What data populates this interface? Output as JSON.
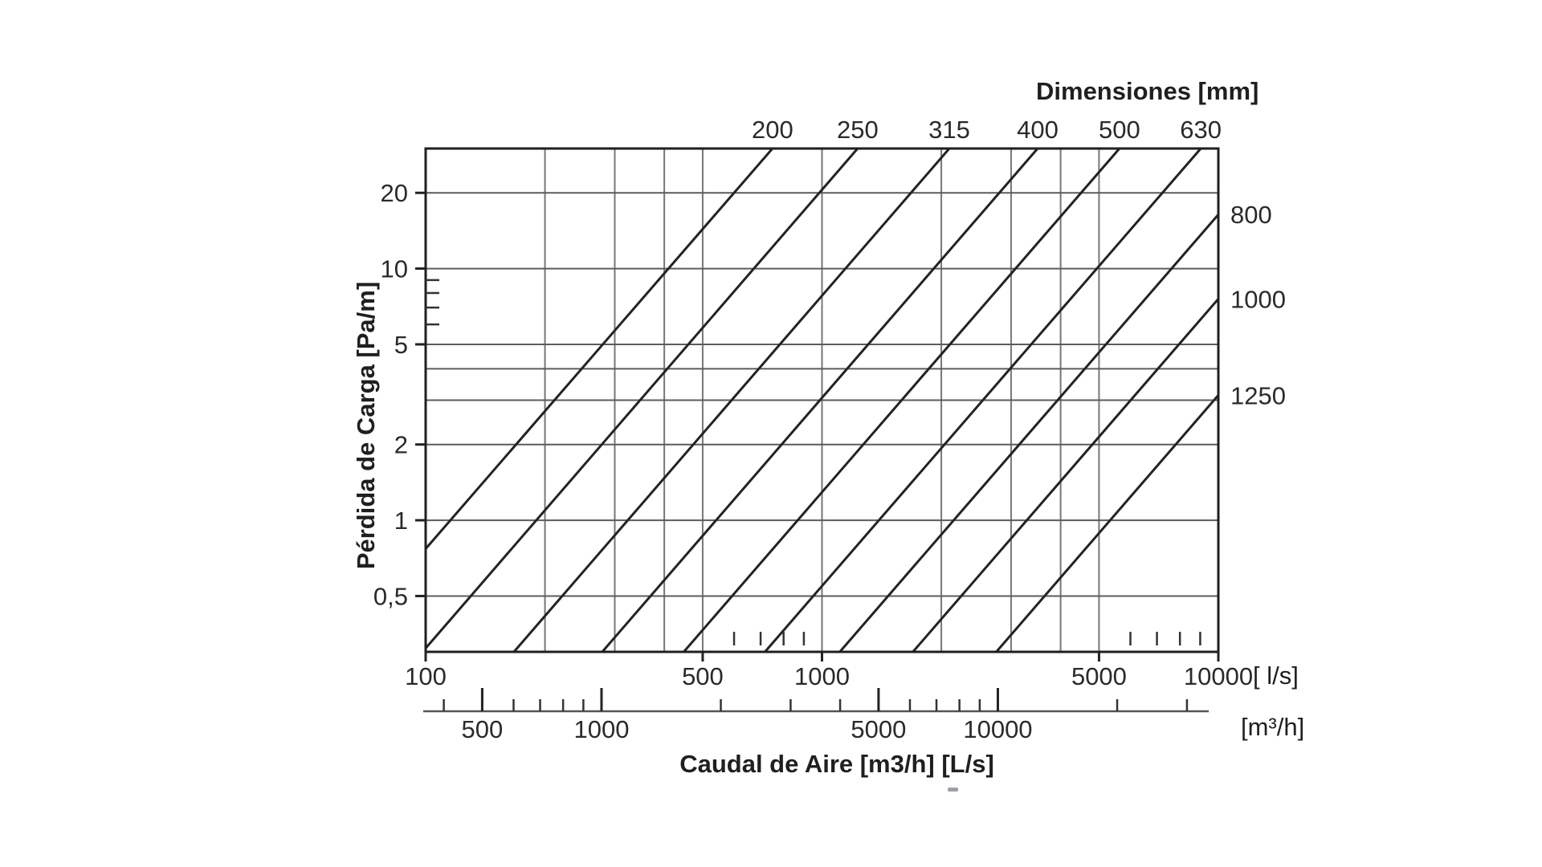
{
  "chart_data": {
    "type": "line",
    "title_top": "Dimensiones [mm]",
    "ylabel": "Pérdida de Carga [Pa/m]",
    "xlabel": "Caudal de Aire [m3/h] [L/s]",
    "x_unit_primary": "[ l/s]",
    "x_unit_secondary": "[m³/h]",
    "x_axis_ls": {
      "scale": "log",
      "min": 100,
      "max": 10000,
      "tick_values": [
        100,
        500,
        1000,
        5000,
        10000
      ],
      "tick_labels": [
        "100",
        "500",
        "1000",
        "5000",
        "10000"
      ],
      "gridline_values": [
        200,
        300,
        400,
        500,
        1000,
        2000,
        3000,
        4000,
        5000
      ],
      "minor_tick_values": [
        600,
        700,
        800,
        900,
        6000,
        7000,
        8000,
        9000
      ]
    },
    "y_axis": {
      "scale": "log",
      "min": 0.3,
      "max": 30,
      "tick_values": [
        20,
        10,
        5,
        2,
        1,
        0.5
      ],
      "tick_labels": [
        "20",
        "10",
        "5",
        "2",
        "1",
        "0,5"
      ],
      "gridline_values": [
        20,
        10,
        5,
        4,
        3,
        2,
        1,
        0.5
      ],
      "minor_tick_values": [
        9,
        8,
        7,
        6
      ]
    },
    "x_axis_m3h": {
      "scale": "log",
      "conversion_to_ls": 0.27778,
      "tick_values": [
        500,
        1000,
        5000,
        10000
      ],
      "tick_labels": [
        "500",
        "1000",
        "5000",
        "10000"
      ],
      "minor_tick_values": [
        400,
        600,
        700,
        800,
        900,
        2000,
        3000,
        4000,
        6000,
        7000,
        8000,
        9000,
        20000,
        30000
      ]
    },
    "series": [
      {
        "name": "200",
        "label_side": "top",
        "points": [
          {
            "q_ls": 100,
            "dp": 0.77
          },
          {
            "q_ls": 750,
            "dp": 30
          }
        ]
      },
      {
        "name": "250",
        "label_side": "top",
        "points": [
          {
            "q_ls": 100,
            "dp": 0.31
          },
          {
            "q_ls": 1230,
            "dp": 30
          }
        ]
      },
      {
        "name": "315",
        "label_side": "top",
        "points": [
          {
            "q_ls": 167,
            "dp": 0.3
          },
          {
            "q_ls": 2095,
            "dp": 30
          }
        ]
      },
      {
        "name": "400",
        "label_side": "top",
        "points": [
          {
            "q_ls": 279,
            "dp": 0.3
          },
          {
            "q_ls": 3500,
            "dp": 30
          }
        ]
      },
      {
        "name": "500",
        "label_side": "top",
        "points": [
          {
            "q_ls": 448,
            "dp": 0.3
          },
          {
            "q_ls": 5630,
            "dp": 30
          }
        ]
      },
      {
        "name": "630",
        "label_side": "top",
        "points": [
          {
            "q_ls": 718,
            "dp": 0.3
          },
          {
            "q_ls": 9030,
            "dp": 30
          }
        ]
      },
      {
        "name": "800",
        "label_side": "right",
        "points": [
          {
            "q_ls": 1109,
            "dp": 0.3
          },
          {
            "q_ls": 10000,
            "dp": 16.4
          }
        ]
      },
      {
        "name": "1000",
        "label_side": "right",
        "points": [
          {
            "q_ls": 1696,
            "dp": 0.3
          },
          {
            "q_ls": 10000,
            "dp": 7.58
          }
        ]
      },
      {
        "name": "1250",
        "label_side": "right",
        "points": [
          {
            "q_ls": 2753,
            "dp": 0.3
          },
          {
            "q_ls": 10000,
            "dp": 3.14
          }
        ]
      }
    ]
  }
}
